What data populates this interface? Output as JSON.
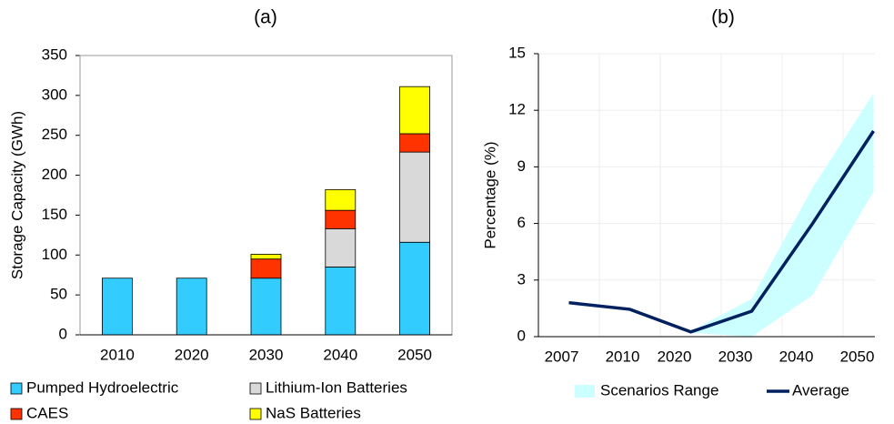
{
  "chart_data": [
    {
      "type": "bar",
      "stacked": true,
      "title": "(a)",
      "y_label": "Storage Capacity (GWh)",
      "categories": [
        "2010",
        "2020",
        "2030",
        "2040",
        "2050"
      ],
      "series": [
        {
          "name": "Pumped Hydroelectric",
          "color": "#33ccff",
          "values": [
            71,
            71,
            71,
            85,
            116
          ]
        },
        {
          "name": "Lithium-Ion Batteries",
          "color": "#d9d9d9",
          "values": [
            0,
            0,
            0,
            48,
            113
          ]
        },
        {
          "name": "CAES",
          "color": "#ff3300",
          "values": [
            0,
            0,
            24,
            23,
            23
          ]
        },
        {
          "name": "NaS Batteries",
          "color": "#ffff00",
          "values": [
            0,
            0,
            6,
            26,
            59
          ]
        }
      ],
      "ylim": [
        0,
        350
      ],
      "yticks": [
        0,
        50,
        100,
        150,
        200,
        250,
        300,
        350
      ],
      "grid": false
    },
    {
      "type": "line",
      "title": "(b)",
      "y_label": "Percentage (%)",
      "categories": [
        "2007",
        "2010",
        "2020",
        "2030",
        "2040",
        "2050"
      ],
      "band": {
        "name": "Scenarios Range",
        "color": "#ccffff",
        "low": [
          null,
          null,
          0.2,
          0,
          2.2,
          7.7
        ],
        "high": [
          null,
          null,
          0.3,
          2.0,
          7.9,
          12.9
        ]
      },
      "series": [
        {
          "name": "Average",
          "color": "#002060",
          "values": [
            1.8,
            1.45,
            0.25,
            1.35,
            6.0,
            10.9
          ]
        }
      ],
      "ylim": [
        0,
        15
      ],
      "yticks": [
        0,
        3,
        6,
        9,
        12,
        15
      ],
      "grid": true
    }
  ]
}
